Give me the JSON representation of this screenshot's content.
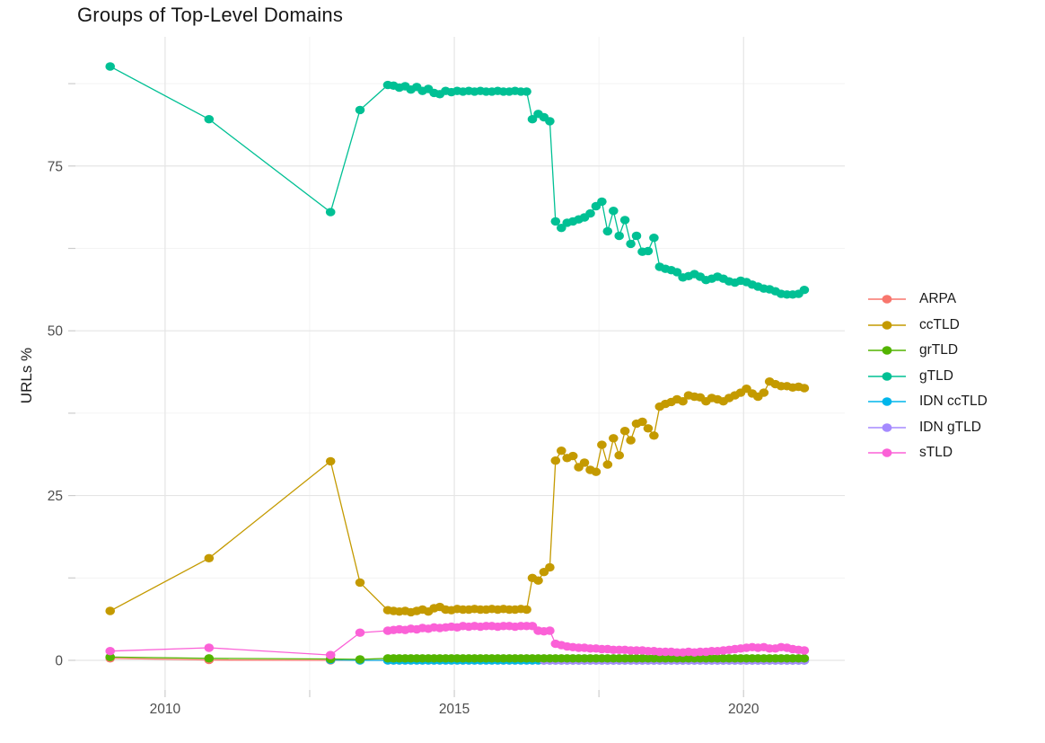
{
  "title": "Groups of Top-Level Domains",
  "y_axis": {
    "label": "URLs %"
  },
  "legend": {
    "items": [
      {
        "label": "ARPA",
        "color": "#F8766D"
      },
      {
        "label": "ccTLD",
        "color": "#C49A00"
      },
      {
        "label": "grTLD",
        "color": "#53B400"
      },
      {
        "label": "gTLD",
        "color": "#00C094"
      },
      {
        "label": "IDN ccTLD",
        "color": "#00B6EB"
      },
      {
        "label": "IDN gTLD",
        "color": "#A58AFF"
      },
      {
        "label": "sTLD",
        "color": "#FB61D7"
      }
    ]
  },
  "chart_data": {
    "type": "line",
    "title": "Groups of Top-Level Domains",
    "xlabel": "",
    "ylabel": "URLs %",
    "xlim": [
      2008.45,
      2021.75
    ],
    "ylim": [
      -4.5,
      94.6
    ],
    "x_major": [
      2010,
      2015,
      2020
    ],
    "x_minor": [
      2012.5,
      2017.5
    ],
    "y_major": [
      0,
      25,
      50,
      75
    ],
    "y_minor": [
      12.5,
      37.5,
      62.5,
      87.5
    ],
    "x_tick_labels": [
      "2010",
      "2015",
      "2020"
    ],
    "y_tick_labels": [
      "0",
      "25",
      "50",
      "75"
    ],
    "grid": true,
    "legend_position": "right",
    "x_dense": {
      "start": 2013.85,
      "step": 0.1
    },
    "draw_order": [
      "ARPA",
      "IDN ccTLD",
      "IDN gTLD",
      "grTLD",
      "gTLD",
      "ccTLD",
      "sTLD"
    ],
    "series": [
      {
        "name": "ARPA",
        "color": "#F8766D",
        "sparse": [
          [
            2009.05,
            0.3
          ],
          [
            2010.76,
            0.05
          ],
          [
            2012.86,
            0.0
          ],
          [
            2013.37,
            0.0
          ]
        ],
        "dense_const": 0.0,
        "dense_count": 73
      },
      {
        "name": "ccTLD",
        "color": "#C49A00",
        "sparse": [
          [
            2009.05,
            7.5
          ],
          [
            2010.76,
            15.5
          ],
          [
            2012.86,
            30.2
          ],
          [
            2013.37,
            11.8
          ]
        ],
        "dense": [
          7.6,
          7.5,
          7.4,
          7.5,
          7.3,
          7.5,
          7.7,
          7.4,
          7.9,
          8.1,
          7.7,
          7.6,
          7.8,
          7.7,
          7.7,
          7.8,
          7.7,
          7.7,
          7.8,
          7.7,
          7.8,
          7.7,
          7.7,
          7.8,
          7.7,
          12.5,
          12.1,
          13.4,
          14.1,
          30.3,
          31.8,
          30.7,
          31.0,
          29.3,
          30.0,
          28.9,
          28.6,
          32.7,
          29.7,
          33.7,
          31.1,
          34.8,
          33.4,
          35.9,
          36.2,
          35.2,
          34.1,
          38.5,
          38.9,
          39.2,
          39.6,
          39.3,
          40.2,
          40.0,
          39.9,
          39.3,
          39.8,
          39.6,
          39.3,
          39.8,
          40.2,
          40.6,
          41.2,
          40.5,
          40.0,
          40.6,
          42.3,
          41.9,
          41.6,
          41.6,
          41.4,
          41.5,
          41.3
        ]
      },
      {
        "name": "grTLD",
        "color": "#53B400",
        "sparse": [
          [
            2009.05,
            0.5
          ],
          [
            2010.76,
            0.3
          ],
          [
            2012.86,
            0.2
          ],
          [
            2013.37,
            0.15
          ]
        ],
        "dense_const": 0.3,
        "dense_count": 73
      },
      {
        "name": "gTLD",
        "color": "#00C094",
        "sparse": [
          [
            2009.05,
            90.1
          ],
          [
            2010.76,
            82.1
          ],
          [
            2012.86,
            68.0
          ],
          [
            2013.37,
            83.5
          ]
        ],
        "dense": [
          87.3,
          87.2,
          86.9,
          87.1,
          86.6,
          87.0,
          86.4,
          86.7,
          86.1,
          85.9,
          86.4,
          86.2,
          86.4,
          86.3,
          86.4,
          86.3,
          86.4,
          86.3,
          86.3,
          86.4,
          86.3,
          86.3,
          86.4,
          86.3,
          86.3,
          82.1,
          82.9,
          82.4,
          81.8,
          66.6,
          65.6,
          66.4,
          66.6,
          66.9,
          67.2,
          67.8,
          68.9,
          69.6,
          65.1,
          68.2,
          64.4,
          66.8,
          63.2,
          64.4,
          62.0,
          62.1,
          64.1,
          59.7,
          59.4,
          59.2,
          58.9,
          58.1,
          58.3,
          58.6,
          58.2,
          57.7,
          57.9,
          58.2,
          57.9,
          57.5,
          57.3,
          57.6,
          57.4,
          57.0,
          56.7,
          56.4,
          56.3,
          56.0,
          55.6,
          55.5,
          55.5,
          55.6,
          56.2
        ]
      },
      {
        "name": "IDN ccTLD",
        "color": "#00B6EB",
        "sparse": [
          [
            2012.86,
            0.05
          ],
          [
            2013.37,
            0.0
          ]
        ],
        "dense_const": 0.0,
        "dense_count": 73
      },
      {
        "name": "IDN gTLD",
        "color": "#A58AFF",
        "sparse": [],
        "dense_const": 0.0,
        "dense_count": 46,
        "dense_offset": 27
      },
      {
        "name": "sTLD",
        "color": "#FB61D7",
        "sparse": [
          [
            2009.05,
            1.4
          ],
          [
            2010.76,
            1.9
          ],
          [
            2012.86,
            0.8
          ],
          [
            2013.37,
            4.2
          ]
        ],
        "dense": [
          4.5,
          4.6,
          4.7,
          4.6,
          4.8,
          4.7,
          4.9,
          4.8,
          5.0,
          4.9,
          5.0,
          5.1,
          5.0,
          5.2,
          5.1,
          5.2,
          5.1,
          5.2,
          5.2,
          5.1,
          5.2,
          5.2,
          5.1,
          5.2,
          5.2,
          5.2,
          4.5,
          4.4,
          4.5,
          2.5,
          2.3,
          2.1,
          2.0,
          1.9,
          1.9,
          1.8,
          1.8,
          1.7,
          1.7,
          1.6,
          1.6,
          1.6,
          1.5,
          1.5,
          1.5,
          1.4,
          1.4,
          1.3,
          1.3,
          1.3,
          1.2,
          1.2,
          1.3,
          1.2,
          1.3,
          1.3,
          1.4,
          1.4,
          1.5,
          1.6,
          1.7,
          1.8,
          1.9,
          2.0,
          1.9,
          2.0,
          1.8,
          1.8,
          2.0,
          1.9,
          1.7,
          1.6,
          1.5
        ]
      }
    ]
  }
}
